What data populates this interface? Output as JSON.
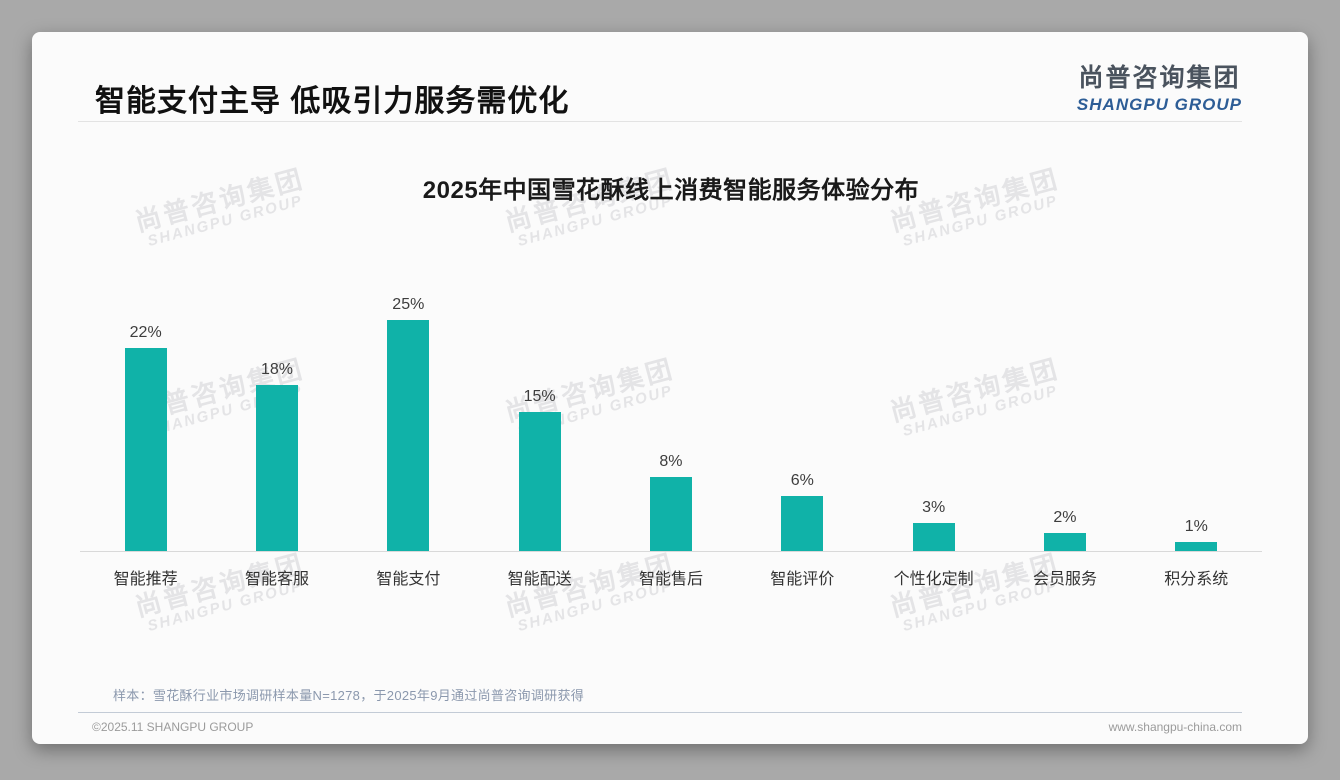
{
  "page": {
    "title": "智能支付主导 低吸引力服务需优化",
    "logo": {
      "cn": "尚普咨询集团",
      "en": "SHANGPU GROUP"
    },
    "watermark": {
      "line1": "尚普咨询集团",
      "line2": "SHANGPU GROUP"
    },
    "footnote": "样本：雪花酥行业市场调研样本量N=1278，于2025年9月通过尚普咨询调研获得",
    "footer": {
      "left": "©2025.11 SHANGPU GROUP",
      "right": "www.shangpu-china.com"
    }
  },
  "chart_data": {
    "type": "bar",
    "title": "2025年中国雪花酥线上消费智能服务体验分布",
    "categories": [
      "智能推荐",
      "智能客服",
      "智能支付",
      "智能配送",
      "智能售后",
      "智能评价",
      "个性化定制",
      "会员服务",
      "积分系统"
    ],
    "values": [
      22,
      18,
      25,
      15,
      8,
      6,
      3,
      2,
      1
    ],
    "value_labels": [
      "22%",
      "18%",
      "25%",
      "15%",
      "8%",
      "6%",
      "3%",
      "2%",
      "1%"
    ],
    "bar_color": "#10b2a8",
    "xlabel": "",
    "ylabel": "",
    "ylim": [
      0,
      27
    ],
    "grid": false,
    "legend": null,
    "value_label_color": "#3d3d3d",
    "axis_line_color": "#d9d9d9"
  }
}
